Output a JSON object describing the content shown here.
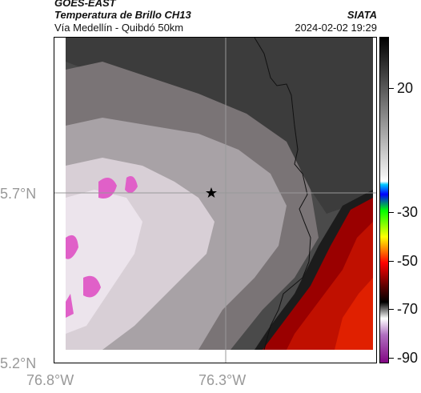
{
  "header": {
    "satellite": "GOES-EAST",
    "product": "Temperatura de Brillo CH13",
    "region": "Vía Medellín - Quibdó 50km",
    "org": "SIATA",
    "datetime": "2024-02-02 19:29"
  },
  "map": {
    "lat_labels": [
      "5.7°N",
      "5.2°N"
    ],
    "lon_labels": [
      "76.8°W",
      "76.3°W"
    ],
    "marker_icon": "star-icon",
    "field_description_colors": {
      "warm": "#e8e0e8",
      "mid": "#a8a2a6",
      "cold_dark": "#3a3a3a",
      "very_cold_red": "#b00000",
      "magenta": "#e060c8"
    }
  },
  "colorbar": {
    "tick_labels": [
      "20",
      "-30",
      "-50",
      "-70",
      "-90"
    ]
  }
}
